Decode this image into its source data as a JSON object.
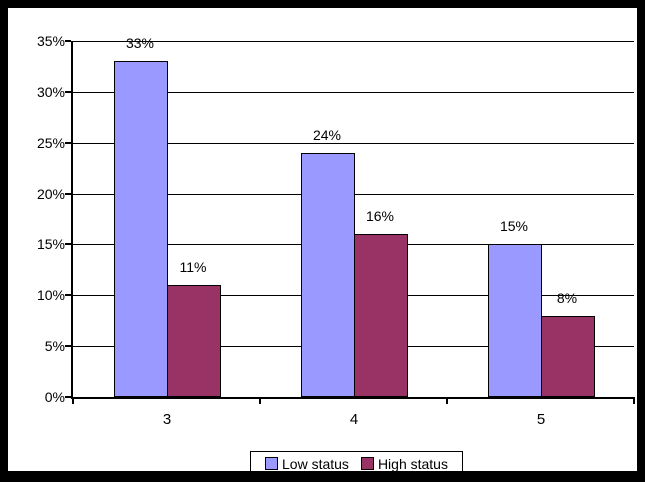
{
  "frame": {
    "border_color": "#000000",
    "background": "#ffffff"
  },
  "chart_data": {
    "type": "bar",
    "categories": [
      "3",
      "4",
      "5"
    ],
    "series": [
      {
        "name": "Low status",
        "color": "#9999ff",
        "values": [
          33,
          24,
          15
        ],
        "data_labels": [
          "33%",
          "24%",
          "15%"
        ]
      },
      {
        "name": "High status",
        "color": "#993366",
        "values": [
          11,
          16,
          8
        ],
        "data_labels": [
          "11%",
          "16%",
          "8%"
        ]
      }
    ],
    "y_ticks": [
      "0%",
      "5%",
      "10%",
      "15%",
      "20%",
      "25%",
      "30%",
      "35%"
    ],
    "ylim": [
      0,
      35
    ],
    "grid": true,
    "gridline_color": "#000000",
    "legend_position": "bottom",
    "bar_border_color": "#000000",
    "text_color": "#000000"
  }
}
